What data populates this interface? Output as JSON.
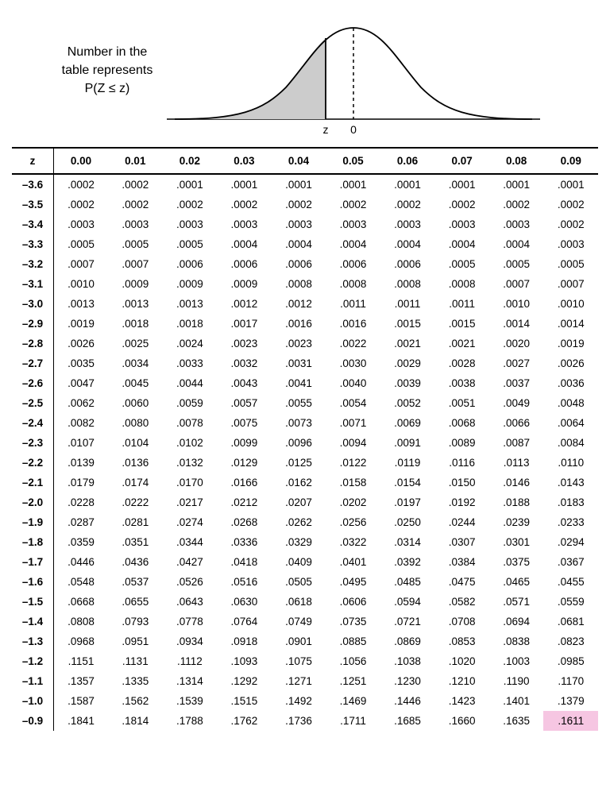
{
  "caption_line1": "Number in the",
  "caption_line2": "table represents",
  "caption_line3": "P(Z ≤ z)",
  "diagram": {
    "z_label": "z",
    "zero_label": "0",
    "curve_stroke": "#000000",
    "fill_color": "#cccccc",
    "dash_color": "#000000"
  },
  "table": {
    "corner": "z",
    "col_headers": [
      "0.00",
      "0.01",
      "0.02",
      "0.03",
      "0.04",
      "0.05",
      "0.06",
      "0.07",
      "0.08",
      "0.09"
    ],
    "row_headers": [
      "–3.6",
      "–3.5",
      "–3.4",
      "–3.3",
      "–3.2",
      "–3.1",
      "–3.0",
      "–2.9",
      "–2.8",
      "–2.7",
      "–2.6",
      "–2.5",
      "–2.4",
      "–2.3",
      "–2.2",
      "–2.1",
      "–2.0",
      "–1.9",
      "–1.8",
      "–1.7",
      "–1.6",
      "–1.5",
      "–1.4",
      "–1.3",
      "–1.2",
      "–1.1",
      "–1.0",
      "–0.9"
    ],
    "rows": [
      [
        ".0002",
        ".0002",
        ".0001",
        ".0001",
        ".0001",
        ".0001",
        ".0001",
        ".0001",
        ".0001",
        ".0001"
      ],
      [
        ".0002",
        ".0002",
        ".0002",
        ".0002",
        ".0002",
        ".0002",
        ".0002",
        ".0002",
        ".0002",
        ".0002"
      ],
      [
        ".0003",
        ".0003",
        ".0003",
        ".0003",
        ".0003",
        ".0003",
        ".0003",
        ".0003",
        ".0003",
        ".0002"
      ],
      [
        ".0005",
        ".0005",
        ".0005",
        ".0004",
        ".0004",
        ".0004",
        ".0004",
        ".0004",
        ".0004",
        ".0003"
      ],
      [
        ".0007",
        ".0007",
        ".0006",
        ".0006",
        ".0006",
        ".0006",
        ".0006",
        ".0005",
        ".0005",
        ".0005"
      ],
      [
        ".0010",
        ".0009",
        ".0009",
        ".0009",
        ".0008",
        ".0008",
        ".0008",
        ".0008",
        ".0007",
        ".0007"
      ],
      [
        ".0013",
        ".0013",
        ".0013",
        ".0012",
        ".0012",
        ".0011",
        ".0011",
        ".0011",
        ".0010",
        ".0010"
      ],
      [
        ".0019",
        ".0018",
        ".0018",
        ".0017",
        ".0016",
        ".0016",
        ".0015",
        ".0015",
        ".0014",
        ".0014"
      ],
      [
        ".0026",
        ".0025",
        ".0024",
        ".0023",
        ".0023",
        ".0022",
        ".0021",
        ".0021",
        ".0020",
        ".0019"
      ],
      [
        ".0035",
        ".0034",
        ".0033",
        ".0032",
        ".0031",
        ".0030",
        ".0029",
        ".0028",
        ".0027",
        ".0026"
      ],
      [
        ".0047",
        ".0045",
        ".0044",
        ".0043",
        ".0041",
        ".0040",
        ".0039",
        ".0038",
        ".0037",
        ".0036"
      ],
      [
        ".0062",
        ".0060",
        ".0059",
        ".0057",
        ".0055",
        ".0054",
        ".0052",
        ".0051",
        ".0049",
        ".0048"
      ],
      [
        ".0082",
        ".0080",
        ".0078",
        ".0075",
        ".0073",
        ".0071",
        ".0069",
        ".0068",
        ".0066",
        ".0064"
      ],
      [
        ".0107",
        ".0104",
        ".0102",
        ".0099",
        ".0096",
        ".0094",
        ".0091",
        ".0089",
        ".0087",
        ".0084"
      ],
      [
        ".0139",
        ".0136",
        ".0132",
        ".0129",
        ".0125",
        ".0122",
        ".0119",
        ".0116",
        ".0113",
        ".0110"
      ],
      [
        ".0179",
        ".0174",
        ".0170",
        ".0166",
        ".0162",
        ".0158",
        ".0154",
        ".0150",
        ".0146",
        ".0143"
      ],
      [
        ".0228",
        ".0222",
        ".0217",
        ".0212",
        ".0207",
        ".0202",
        ".0197",
        ".0192",
        ".0188",
        ".0183"
      ],
      [
        ".0287",
        ".0281",
        ".0274",
        ".0268",
        ".0262",
        ".0256",
        ".0250",
        ".0244",
        ".0239",
        ".0233"
      ],
      [
        ".0359",
        ".0351",
        ".0344",
        ".0336",
        ".0329",
        ".0322",
        ".0314",
        ".0307",
        ".0301",
        ".0294"
      ],
      [
        ".0446",
        ".0436",
        ".0427",
        ".0418",
        ".0409",
        ".0401",
        ".0392",
        ".0384",
        ".0375",
        ".0367"
      ],
      [
        ".0548",
        ".0537",
        ".0526",
        ".0516",
        ".0505",
        ".0495",
        ".0485",
        ".0475",
        ".0465",
        ".0455"
      ],
      [
        ".0668",
        ".0655",
        ".0643",
        ".0630",
        ".0618",
        ".0606",
        ".0594",
        ".0582",
        ".0571",
        ".0559"
      ],
      [
        ".0808",
        ".0793",
        ".0778",
        ".0764",
        ".0749",
        ".0735",
        ".0721",
        ".0708",
        ".0694",
        ".0681"
      ],
      [
        ".0968",
        ".0951",
        ".0934",
        ".0918",
        ".0901",
        ".0885",
        ".0869",
        ".0853",
        ".0838",
        ".0823"
      ],
      [
        ".1151",
        ".1131",
        ".1112",
        ".1093",
        ".1075",
        ".1056",
        ".1038",
        ".1020",
        ".1003",
        ".0985"
      ],
      [
        ".1357",
        ".1335",
        ".1314",
        ".1292",
        ".1271",
        ".1251",
        ".1230",
        ".1210",
        ".1190",
        ".1170"
      ],
      [
        ".1587",
        ".1562",
        ".1539",
        ".1515",
        ".1492",
        ".1469",
        ".1446",
        ".1423",
        ".1401",
        ".1379"
      ],
      [
        ".1841",
        ".1814",
        ".1788",
        ".1762",
        ".1736",
        ".1711",
        ".1685",
        ".1660",
        ".1635",
        ".1611"
      ]
    ],
    "highlight": {
      "row": 27,
      "col": 9,
      "bg": "#f6c6e2"
    }
  }
}
